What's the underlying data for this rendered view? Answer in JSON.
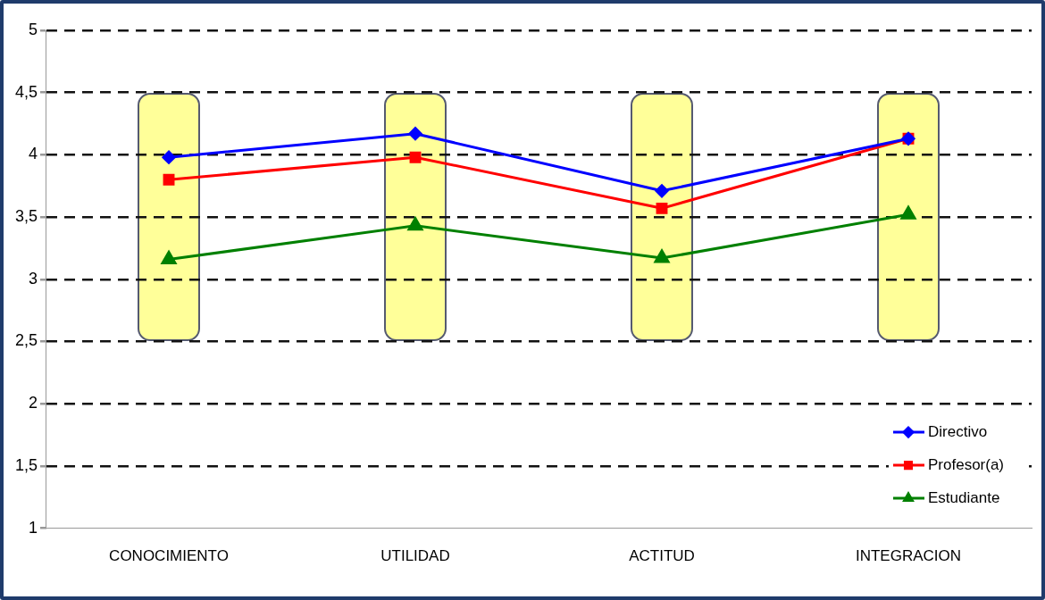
{
  "chart_data": {
    "type": "line",
    "categories": [
      "CONOCIMIENTO",
      "UTILIDAD",
      "ACTITUD",
      "INTEGRACION"
    ],
    "series": [
      {
        "name": "Directivo",
        "color": "#0000ff",
        "marker": "diamond",
        "values": [
          3.98,
          4.17,
          3.71,
          4.13
        ]
      },
      {
        "name": "Profesor(a)",
        "color": "#ff0000",
        "marker": "square",
        "values": [
          3.8,
          3.98,
          3.57,
          4.13
        ]
      },
      {
        "name": "Estudiante",
        "color": "#008000",
        "marker": "triangle",
        "values": [
          3.16,
          3.43,
          3.17,
          3.52
        ]
      }
    ],
    "ylim": [
      1,
      5
    ],
    "yticks": [
      1,
      {
        "value": 1.5,
        "label": "1,5"
      },
      2,
      {
        "value": 2.5,
        "label": "2,5"
      },
      3,
      {
        "value": 3.5,
        "label": "3,5"
      },
      4,
      {
        "value": 4.5,
        "label": "4,5"
      },
      5
    ],
    "grid": "y",
    "line_style": "solid",
    "legend": "bottom right"
  }
}
